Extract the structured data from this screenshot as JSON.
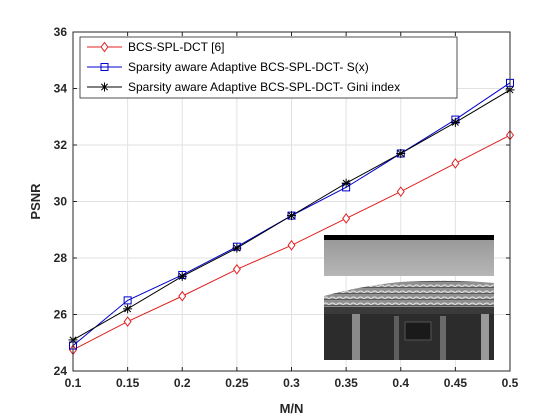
{
  "chart_data": {
    "type": "line",
    "xlabel": "M/N",
    "ylabel": "PSNR",
    "xlim": [
      0.1,
      0.5
    ],
    "ylim": [
      24,
      36
    ],
    "xticks": [
      "0.1",
      "0.15",
      "0.2",
      "0.25",
      "0.3",
      "0.35",
      "0.4",
      "0.45",
      "0.5"
    ],
    "yticks": [
      "24",
      "26",
      "28",
      "30",
      "32",
      "34",
      "36"
    ],
    "grid": true,
    "legend_position": "top-left",
    "x": [
      0.1,
      0.15,
      0.2,
      0.25,
      0.3,
      0.35,
      0.4,
      0.45,
      0.5
    ],
    "series": [
      {
        "name": "BCS-SPL-DCT [6]",
        "color": "#e02020",
        "marker": "diamond",
        "values": [
          24.75,
          25.75,
          26.65,
          27.6,
          28.45,
          29.4,
          30.35,
          31.35,
          32.35
        ]
      },
      {
        "name": "Sparsity aware Adaptive BCS-SPL-DCT- S(x)",
        "color": "#0000cc",
        "marker": "square",
        "values": [
          24.9,
          26.5,
          27.4,
          28.4,
          29.5,
          30.5,
          31.7,
          32.9,
          34.2
        ]
      },
      {
        "name": "Sparsity aware Adaptive BCS-SPL-DCT- Gini index",
        "color": "#000000",
        "marker": "asterisk",
        "values": [
          25.1,
          26.2,
          27.35,
          28.35,
          29.5,
          30.65,
          31.7,
          32.8,
          33.95
        ]
      }
    ],
    "inset_image": "grayscale photo of a tiled roof"
  }
}
